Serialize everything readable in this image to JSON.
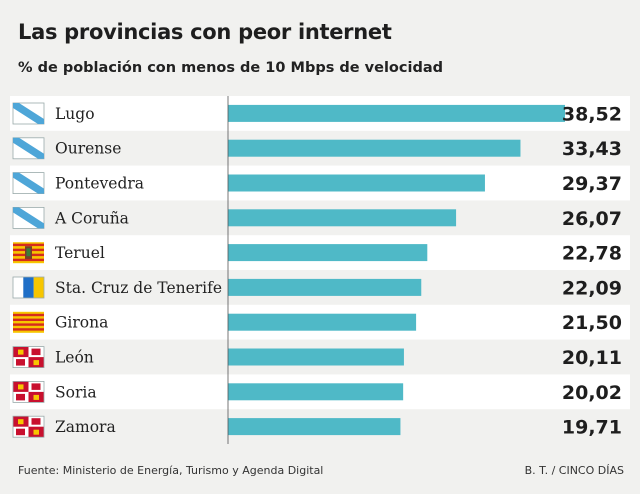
{
  "title": "Las provincias con peor internet",
  "subtitle": "% de población con menos de 10 Mbps de velocidad",
  "source": "Fuente: Ministerio de Energía, Turismo y Agenda Digital",
  "credit": "B. T. / CINCO DÍAS",
  "colors": {
    "bar": "#4fb9c7",
    "row_alt": "#ffffff",
    "background": "#f1f1ef",
    "text": "#222222"
  },
  "chart_data": {
    "type": "bar",
    "orientation": "horizontal",
    "title": "Las provincias con peor internet",
    "ylabel": "% de población con menos de 10 Mbps de velocidad",
    "categories": [
      "Lugo",
      "Ourense",
      "Pontevedra",
      "A Coruña",
      "Teruel",
      "Sta. Cruz de Tenerife",
      "Girona",
      "León",
      "Soria",
      "Zamora"
    ],
    "values": [
      38.52,
      33.43,
      29.37,
      26.07,
      22.78,
      22.09,
      21.5,
      20.11,
      20.02,
      19.71
    ],
    "value_labels": [
      "38,52",
      "33,43",
      "29,37",
      "26,07",
      "22,78",
      "22,09",
      "21,50",
      "20,11",
      "20,02",
      "19,71"
    ],
    "flags": [
      "galicia-flag-icon",
      "galicia-flag-icon",
      "galicia-flag-icon",
      "galicia-flag-icon",
      "aragon-flag-icon",
      "canarias-flag-icon",
      "catalonia-flag-icon",
      "castilla-leon-flag-icon",
      "castilla-leon-flag-icon",
      "castilla-leon-flag-icon"
    ],
    "xlim": [
      0,
      38.52
    ]
  }
}
